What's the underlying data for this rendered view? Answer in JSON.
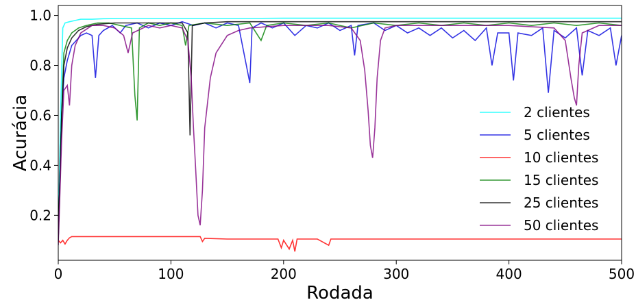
{
  "chart_data": {
    "type": "line",
    "title": "",
    "xlabel": "Rodada",
    "ylabel": "Acurácia",
    "xlim": [
      0,
      500
    ],
    "ylim": [
      0.02,
      1.04
    ],
    "xticks": [
      0,
      100,
      200,
      300,
      400,
      500
    ],
    "xtick_labels": [
      "0",
      "100",
      "200",
      "300",
      "400",
      "500"
    ],
    "yticks": [
      0.2,
      0.4,
      0.6,
      0.8,
      1.0
    ],
    "ytick_labels": [
      "0.2",
      "0.4",
      "0.6",
      "0.8",
      "1.0"
    ],
    "grid": false,
    "legend_position": "right",
    "series": [
      {
        "name": "2 clientes",
        "color": "#00ffff",
        "points": [
          [
            0,
            0.1
          ],
          [
            2,
            0.6
          ],
          [
            4,
            0.95
          ],
          [
            6,
            0.97
          ],
          [
            10,
            0.975
          ],
          [
            15,
            0.98
          ],
          [
            20,
            0.985
          ],
          [
            30,
            0.985
          ],
          [
            40,
            0.987
          ],
          [
            60,
            0.988
          ],
          [
            100,
            0.988
          ],
          [
            150,
            0.988
          ],
          [
            200,
            0.989
          ],
          [
            250,
            0.989
          ],
          [
            300,
            0.989
          ],
          [
            350,
            0.989
          ],
          [
            400,
            0.989
          ],
          [
            450,
            0.989
          ],
          [
            500,
            0.989
          ]
        ]
      },
      {
        "name": "5 clientes",
        "color": "#0000dd",
        "points": [
          [
            0,
            0.1
          ],
          [
            3,
            0.6
          ],
          [
            5,
            0.75
          ],
          [
            8,
            0.82
          ],
          [
            12,
            0.88
          ],
          [
            16,
            0.9
          ],
          [
            20,
            0.92
          ],
          [
            25,
            0.93
          ],
          [
            30,
            0.92
          ],
          [
            33,
            0.75
          ],
          [
            36,
            0.92
          ],
          [
            40,
            0.94
          ],
          [
            48,
            0.96
          ],
          [
            55,
            0.93
          ],
          [
            60,
            0.96
          ],
          [
            70,
            0.97
          ],
          [
            80,
            0.95
          ],
          [
            90,
            0.97
          ],
          [
            100,
            0.96
          ],
          [
            110,
            0.975
          ],
          [
            120,
            0.96
          ],
          [
            130,
            0.97
          ],
          [
            140,
            0.95
          ],
          [
            150,
            0.97
          ],
          [
            160,
            0.96
          ],
          [
            170,
            0.73
          ],
          [
            172,
            0.95
          ],
          [
            180,
            0.97
          ],
          [
            190,
            0.95
          ],
          [
            200,
            0.97
          ],
          [
            210,
            0.92
          ],
          [
            220,
            0.96
          ],
          [
            230,
            0.95
          ],
          [
            240,
            0.97
          ],
          [
            250,
            0.94
          ],
          [
            260,
            0.96
          ],
          [
            263,
            0.84
          ],
          [
            266,
            0.96
          ],
          [
            280,
            0.97
          ],
          [
            290,
            0.94
          ],
          [
            300,
            0.96
          ],
          [
            310,
            0.93
          ],
          [
            320,
            0.95
          ],
          [
            330,
            0.92
          ],
          [
            340,
            0.95
          ],
          [
            350,
            0.91
          ],
          [
            360,
            0.94
          ],
          [
            370,
            0.9
          ],
          [
            380,
            0.95
          ],
          [
            385,
            0.8
          ],
          [
            390,
            0.93
          ],
          [
            400,
            0.93
          ],
          [
            404,
            0.74
          ],
          [
            408,
            0.93
          ],
          [
            420,
            0.92
          ],
          [
            430,
            0.95
          ],
          [
            435,
            0.69
          ],
          [
            440,
            0.94
          ],
          [
            450,
            0.91
          ],
          [
            460,
            0.95
          ],
          [
            465,
            0.76
          ],
          [
            470,
            0.94
          ],
          [
            480,
            0.92
          ],
          [
            490,
            0.95
          ],
          [
            495,
            0.8
          ],
          [
            500,
            0.92
          ]
        ]
      },
      {
        "name": "10 clientes",
        "color": "#ff0000",
        "points": [
          [
            0,
            0.1
          ],
          [
            2,
            0.09
          ],
          [
            4,
            0.1
          ],
          [
            6,
            0.085
          ],
          [
            8,
            0.1
          ],
          [
            10,
            0.11
          ],
          [
            12,
            0.115
          ],
          [
            20,
            0.115
          ],
          [
            50,
            0.115
          ],
          [
            100,
            0.115
          ],
          [
            126,
            0.115
          ],
          [
            128,
            0.095
          ],
          [
            130,
            0.108
          ],
          [
            150,
            0.105
          ],
          [
            180,
            0.105
          ],
          [
            195,
            0.105
          ],
          [
            198,
            0.07
          ],
          [
            200,
            0.1
          ],
          [
            205,
            0.065
          ],
          [
            208,
            0.1
          ],
          [
            210,
            0.055
          ],
          [
            212,
            0.105
          ],
          [
            230,
            0.105
          ],
          [
            240,
            0.08
          ],
          [
            242,
            0.105
          ],
          [
            270,
            0.105
          ],
          [
            300,
            0.105
          ],
          [
            350,
            0.105
          ],
          [
            400,
            0.105
          ],
          [
            450,
            0.105
          ],
          [
            500,
            0.105
          ]
        ]
      },
      {
        "name": "15 clientes",
        "color": "#008000",
        "points": [
          [
            0,
            0.1
          ],
          [
            3,
            0.6
          ],
          [
            5,
            0.85
          ],
          [
            8,
            0.9
          ],
          [
            12,
            0.93
          ],
          [
            18,
            0.95
          ],
          [
            25,
            0.96
          ],
          [
            35,
            0.97
          ],
          [
            45,
            0.97
          ],
          [
            55,
            0.96
          ],
          [
            65,
            0.95
          ],
          [
            68,
            0.68
          ],
          [
            70,
            0.58
          ],
          [
            72,
            0.95
          ],
          [
            80,
            0.97
          ],
          [
            90,
            0.96
          ],
          [
            100,
            0.97
          ],
          [
            110,
            0.96
          ],
          [
            113,
            0.88
          ],
          [
            116,
            0.96
          ],
          [
            130,
            0.97
          ],
          [
            150,
            0.96
          ],
          [
            170,
            0.97
          ],
          [
            180,
            0.9
          ],
          [
            185,
            0.96
          ],
          [
            200,
            0.97
          ],
          [
            220,
            0.96
          ],
          [
            240,
            0.97
          ],
          [
            260,
            0.95
          ],
          [
            280,
            0.97
          ],
          [
            300,
            0.96
          ],
          [
            320,
            0.97
          ],
          [
            340,
            0.96
          ],
          [
            360,
            0.97
          ],
          [
            380,
            0.96
          ],
          [
            400,
            0.97
          ],
          [
            420,
            0.96
          ],
          [
            440,
            0.97
          ],
          [
            460,
            0.96
          ],
          [
            480,
            0.97
          ],
          [
            500,
            0.96
          ]
        ]
      },
      {
        "name": "25 clientes",
        "color": "#000000",
        "points": [
          [
            0,
            0.1
          ],
          [
            3,
            0.6
          ],
          [
            5,
            0.8
          ],
          [
            8,
            0.87
          ],
          [
            12,
            0.91
          ],
          [
            18,
            0.94
          ],
          [
            25,
            0.955
          ],
          [
            35,
            0.965
          ],
          [
            50,
            0.97
          ],
          [
            70,
            0.97
          ],
          [
            90,
            0.97
          ],
          [
            110,
            0.97
          ],
          [
            115,
            0.93
          ],
          [
            117,
            0.52
          ],
          [
            119,
            0.96
          ],
          [
            130,
            0.97
          ],
          [
            150,
            0.975
          ],
          [
            200,
            0.975
          ],
          [
            250,
            0.975
          ],
          [
            300,
            0.975
          ],
          [
            350,
            0.975
          ],
          [
            400,
            0.975
          ],
          [
            450,
            0.975
          ],
          [
            500,
            0.975
          ]
        ]
      },
      {
        "name": "50 clientes",
        "color": "#800080",
        "points": [
          [
            0,
            0.08
          ],
          [
            3,
            0.5
          ],
          [
            5,
            0.7
          ],
          [
            8,
            0.72
          ],
          [
            10,
            0.64
          ],
          [
            12,
            0.8
          ],
          [
            15,
            0.88
          ],
          [
            20,
            0.93
          ],
          [
            30,
            0.96
          ],
          [
            40,
            0.96
          ],
          [
            50,
            0.95
          ],
          [
            58,
            0.92
          ],
          [
            62,
            0.85
          ],
          [
            66,
            0.93
          ],
          [
            80,
            0.96
          ],
          [
            90,
            0.95
          ],
          [
            100,
            0.96
          ],
          [
            110,
            0.95
          ],
          [
            115,
            0.9
          ],
          [
            118,
            0.75
          ],
          [
            120,
            0.55
          ],
          [
            122,
            0.38
          ],
          [
            124,
            0.2
          ],
          [
            126,
            0.16
          ],
          [
            128,
            0.3
          ],
          [
            130,
            0.55
          ],
          [
            135,
            0.75
          ],
          [
            140,
            0.85
          ],
          [
            150,
            0.92
          ],
          [
            160,
            0.94
          ],
          [
            170,
            0.95
          ],
          [
            200,
            0.96
          ],
          [
            240,
            0.96
          ],
          [
            260,
            0.95
          ],
          [
            268,
            0.9
          ],
          [
            272,
            0.78
          ],
          [
            275,
            0.62
          ],
          [
            277,
            0.48
          ],
          [
            279,
            0.43
          ],
          [
            281,
            0.55
          ],
          [
            283,
            0.75
          ],
          [
            286,
            0.9
          ],
          [
            290,
            0.95
          ],
          [
            300,
            0.96
          ],
          [
            350,
            0.96
          ],
          [
            400,
            0.96
          ],
          [
            440,
            0.95
          ],
          [
            450,
            0.9
          ],
          [
            455,
            0.75
          ],
          [
            458,
            0.67
          ],
          [
            460,
            0.64
          ],
          [
            462,
            0.8
          ],
          [
            465,
            0.93
          ],
          [
            480,
            0.96
          ],
          [
            500,
            0.96
          ]
        ]
      }
    ]
  }
}
